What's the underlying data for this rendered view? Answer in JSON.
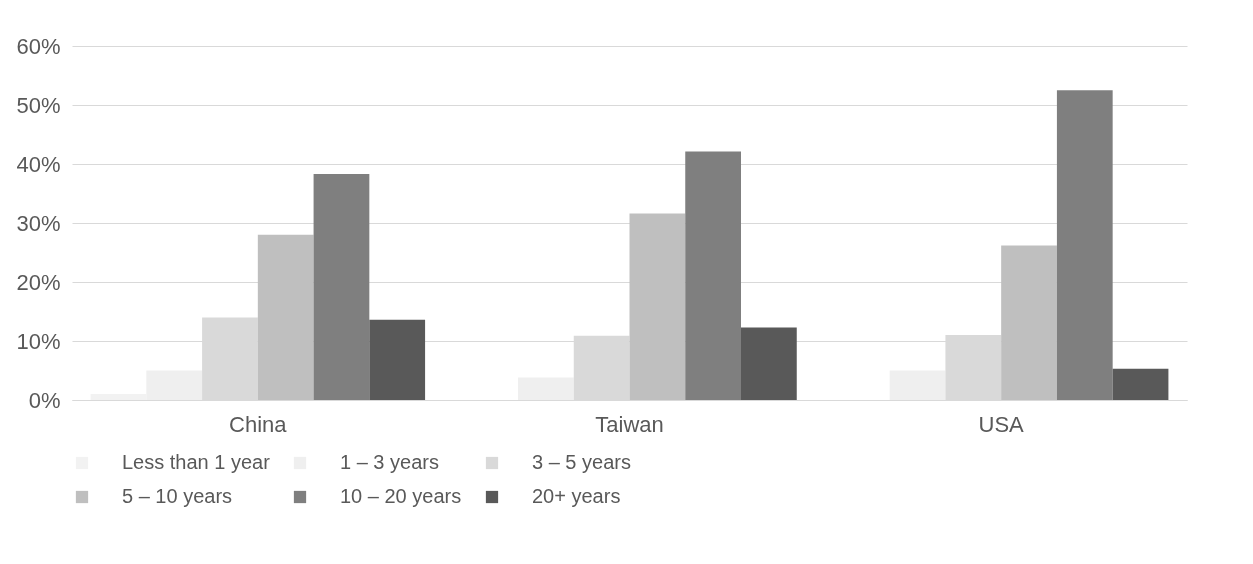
{
  "chart_data": {
    "type": "bar",
    "categories": [
      "China",
      "Taiwan",
      "USA"
    ],
    "series": [
      {
        "name": "Less than 1 year",
        "color": "#f2f2f2",
        "values": [
          1,
          0,
          0
        ]
      },
      {
        "name": "1 – 3 years",
        "color": "#efefef",
        "values": [
          5,
          3.8,
          5
        ]
      },
      {
        "name": "3 – 5 years",
        "color": "#d9d9d9",
        "values": [
          14,
          10.9,
          11
        ]
      },
      {
        "name": "5 – 10 years",
        "color": "#bfbfbf",
        "values": [
          28,
          31.6,
          26.2
        ]
      },
      {
        "name": "10 – 20 years",
        "color": "#7f7f7f",
        "values": [
          38.3,
          42.1,
          52.5
        ]
      },
      {
        "name": "20+ years",
        "color": "#595959",
        "values": [
          13.6,
          12.3,
          5.3
        ]
      }
    ],
    "ylim": [
      0,
      60
    ],
    "yticks": [
      {
        "value": 0,
        "label": "0%"
      },
      {
        "value": 10,
        "label": "10%"
      },
      {
        "value": 20,
        "label": "20%"
      },
      {
        "value": 30,
        "label": "30%"
      },
      {
        "value": 40,
        "label": "40%"
      },
      {
        "value": 50,
        "label": "50%"
      },
      {
        "value": 60,
        "label": "60%"
      }
    ],
    "grid": "y",
    "legend": "bottom"
  }
}
